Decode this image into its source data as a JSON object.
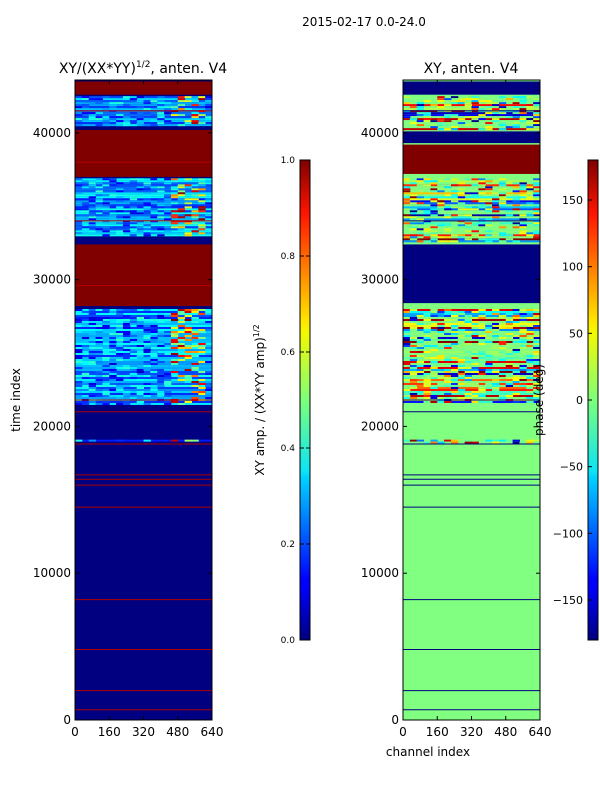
{
  "suptitle": "2015-02-17 0.0-24.0",
  "chart_data": [
    {
      "type": "heatmap",
      "title": "XY/(XX*YY)",
      "title_sup": "1/2",
      "title_suffix": ", anten. V4",
      "xlabel": "",
      "ylabel": "time index",
      "xlim": [
        0,
        640
      ],
      "ylim": [
        0,
        43600
      ],
      "xticks": [
        0,
        160,
        320,
        480,
        640
      ],
      "yticks": [
        0,
        10000,
        20000,
        30000,
        40000
      ],
      "colorbar": {
        "label": "XY amp. / (XX*YY amp)",
        "label_sup": "1/2",
        "range": [
          0.0,
          1.0
        ],
        "ticks": [
          "0.0",
          "0.2",
          "0.4",
          "0.6",
          "0.8",
          "1.0"
        ]
      },
      "colormap": "jet",
      "background_value": 0.0,
      "saturated_bands": [
        [
          28200,
          32400
        ],
        [
          37000,
          40200
        ],
        [
          42600,
          43500
        ]
      ],
      "structured_bands": [
        [
          19000,
          19100
        ],
        [
          21500,
          28000
        ],
        [
          33000,
          36900
        ],
        [
          40500,
          42500
        ]
      ],
      "thin_lines": [
        700,
        2000,
        4800,
        8200,
        14500,
        16000,
        16400,
        16700,
        18800,
        21000,
        21800,
        29600,
        34000,
        38000,
        41500
      ],
      "bright_channel_band": [
        450,
        600
      ]
    },
    {
      "type": "heatmap",
      "title": "XY, anten. V4",
      "xlabel": "channel index",
      "ylabel": "",
      "xlim": [
        0,
        640
      ],
      "ylim": [
        0,
        43600
      ],
      "xticks": [
        0,
        160,
        320,
        480,
        640
      ],
      "yticks": [
        0,
        10000,
        20000,
        30000,
        40000
      ],
      "colorbar": {
        "label": "phase (deg)",
        "range": [
          -180,
          180
        ],
        "ticks": [
          "150",
          "100",
          "50",
          "0",
          "−50",
          "−100",
          "−150"
        ],
        "tick_values": [
          150,
          100,
          50,
          0,
          -50,
          -100,
          -150
        ]
      },
      "colormap": "jet",
      "background_value_deg": 0,
      "dark_bands": [
        [
          28400,
          32400
        ],
        [
          39300,
          40100
        ],
        [
          42600,
          43500
        ]
      ],
      "saturated_bands": [
        [
          37200,
          39200
        ]
      ],
      "structured_bands": [
        [
          18900,
          19100
        ],
        [
          21600,
          28000
        ],
        [
          32600,
          36900
        ],
        [
          40300,
          42500
        ]
      ],
      "thin_lines": [
        700,
        2000,
        4800,
        8200,
        14500,
        16000,
        16400,
        16700,
        18800,
        21000,
        21800,
        29600,
        34000,
        41500
      ]
    }
  ]
}
